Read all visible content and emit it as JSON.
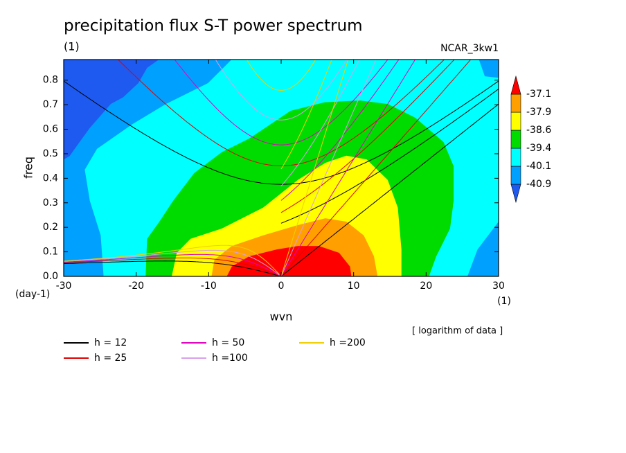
{
  "chart_data": {
    "type": "contour",
    "title": "precipitation flux S-T power spectrum",
    "subtitle": "(1)",
    "label_right": "NCAR_3kw1",
    "x_label": "wvn",
    "y_label": "freq",
    "x_units": "(1)",
    "y_units": "(day-1)",
    "note": "[ logarithm of data ]",
    "xlim": [
      -30,
      30
    ],
    "ylim": [
      0,
      0.884
    ],
    "xticks": [
      -30,
      -20,
      -10,
      0,
      10,
      20,
      30
    ],
    "yticks": [
      {
        "value": 0,
        "label": "0.0"
      },
      0.1,
      0.2,
      0.3,
      0.4,
      0.5,
      0.6,
      0.7,
      0.8
    ],
    "levels": [
      -40.9,
      -40.1,
      -39.4,
      -38.6,
      -37.9,
      -37.1
    ],
    "colors": [
      "#1e5af0",
      "#00a0ff",
      "#00ffff",
      "#00dc00",
      "#ffff00",
      "#ffa000",
      "#ff0000"
    ],
    "regions": [
      [
        [
          -16.1,
          0.9
        ],
        [
          -18.5,
          0.85
        ],
        [
          -19.7,
          0.788
        ],
        [
          -21.8,
          0.73
        ],
        [
          -23.5,
          0.703
        ],
        [
          -26.4,
          0.605
        ],
        [
          -27.8,
          0.548
        ],
        [
          -29.2,
          0.49
        ],
        [
          -30,
          0.477
        ],
        [
          -32,
          0.47
        ],
        [
          -32,
          -0.1
        ],
        [
          32,
          -0.1
        ],
        [
          32,
          0.9
        ]
      ],
      [
        [
          -24.5,
          0
        ],
        [
          -24.9,
          0.167
        ],
        [
          -26.4,
          0.308
        ],
        [
          -27.1,
          0.435
        ],
        [
          -25.4,
          0.52
        ],
        [
          -20.6,
          0.619
        ],
        [
          -15.9,
          0.703
        ],
        [
          -10.1,
          0.788
        ],
        [
          -6.3,
          0.9
        ],
        [
          27.1,
          0.9
        ],
        [
          28.1,
          0.816
        ],
        [
          30,
          0.81
        ],
        [
          32,
          0.8
        ],
        [
          32,
          0.25
        ],
        [
          30,
          0.223
        ],
        [
          27.1,
          0.11
        ],
        [
          25.7,
          0
        ]
      ],
      [
        [
          -18.7,
          0
        ],
        [
          -18.5,
          0.153
        ],
        [
          -16.8,
          0.223
        ],
        [
          -14.9,
          0.308
        ],
        [
          -12,
          0.421
        ],
        [
          -8.2,
          0.506
        ],
        [
          -4.4,
          0.562
        ],
        [
          1.3,
          0.675
        ],
        [
          6,
          0.71
        ],
        [
          10.9,
          0.717
        ],
        [
          14.7,
          0.703
        ],
        [
          18.5,
          0.647
        ],
        [
          22.4,
          0.548
        ],
        [
          23.8,
          0.449
        ],
        [
          23.8,
          0.308
        ],
        [
          23.3,
          0.195
        ],
        [
          21.4,
          0.082
        ],
        [
          20.4,
          0
        ]
      ],
      [
        [
          -15.1,
          0
        ],
        [
          -14.4,
          0.096
        ],
        [
          -12.5,
          0.153
        ],
        [
          -8.2,
          0.195
        ],
        [
          -2.5,
          0.28
        ],
        [
          2.3,
          0.393
        ],
        [
          6.1,
          0.463
        ],
        [
          9,
          0.492
        ],
        [
          11.8,
          0.477
        ],
        [
          14.7,
          0.393
        ],
        [
          16.1,
          0.28
        ],
        [
          16.6,
          0.11
        ],
        [
          16.6,
          0
        ]
      ],
      [
        [
          -9.6,
          0
        ],
        [
          -9.2,
          0.068
        ],
        [
          -6.8,
          0.124
        ],
        [
          -2.5,
          0.167
        ],
        [
          2.3,
          0.209
        ],
        [
          6.1,
          0.237
        ],
        [
          9,
          0.223
        ],
        [
          11.4,
          0.167
        ],
        [
          12.8,
          0.082
        ],
        [
          13.3,
          0
        ]
      ],
      [
        [
          -7.5,
          0
        ],
        [
          -6.8,
          0.04
        ],
        [
          -4.4,
          0.082
        ],
        [
          -0.6,
          0.11
        ],
        [
          2.3,
          0.124
        ],
        [
          5.2,
          0.124
        ],
        [
          8,
          0.096
        ],
        [
          9.5,
          0.04
        ],
        [
          9.7,
          0
        ]
      ]
    ],
    "series": [
      {
        "name": "h = 12",
        "h": 12,
        "color": "#000000"
      },
      {
        "name": "h = 25",
        "h": 25,
        "color": "#e00000"
      },
      {
        "name": "h = 50",
        "h": 50,
        "color": "#e000c0"
      },
      {
        "name": "h =100",
        "h": 100,
        "color": "#d8a0e8"
      },
      {
        "name": "h =200",
        "h": 200,
        "color": "#f0d000"
      }
    ]
  }
}
